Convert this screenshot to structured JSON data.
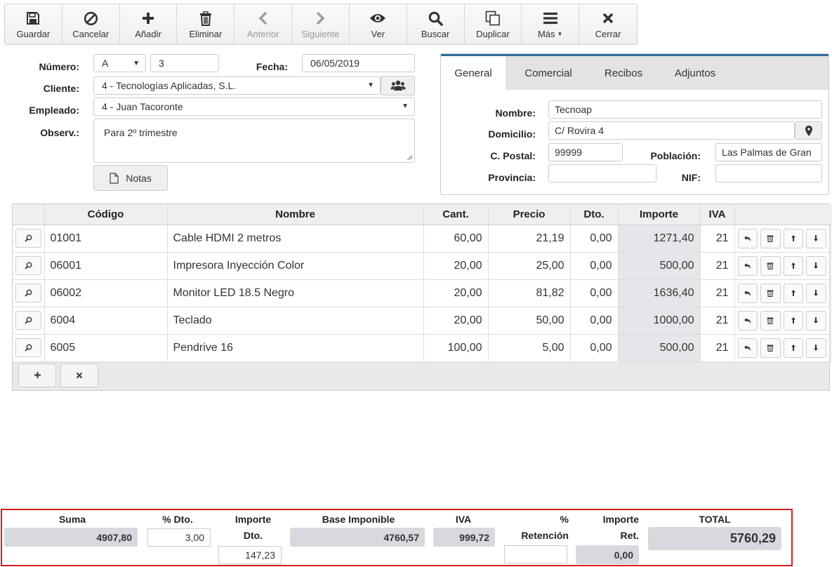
{
  "toolbar": {
    "buttons": [
      {
        "label": "Guardar",
        "icon": "save-icon",
        "disabled": false
      },
      {
        "label": "Cancelar",
        "icon": "ban-icon",
        "disabled": false
      },
      {
        "label": "Añadir",
        "icon": "plus-icon",
        "disabled": false
      },
      {
        "label": "Eliminar",
        "icon": "trash-icon",
        "disabled": false
      },
      {
        "label": "Anterior",
        "icon": "chevron-left-icon",
        "disabled": true
      },
      {
        "label": "Siguiente",
        "icon": "chevron-right-icon",
        "disabled": true
      },
      {
        "label": "Ver",
        "icon": "eye-icon",
        "disabled": false
      },
      {
        "label": "Buscar",
        "icon": "search-icon",
        "disabled": false
      },
      {
        "label": "Duplicar",
        "icon": "copy-icon",
        "disabled": false
      },
      {
        "label": "Más",
        "icon": "menu-icon",
        "disabled": false
      },
      {
        "label": "Cerrar",
        "icon": "close-icon",
        "disabled": false
      }
    ]
  },
  "form": {
    "numero_label": "Número:",
    "serie": "A",
    "numero": "3",
    "fecha_label": "Fecha:",
    "fecha": "06/05/2019",
    "cliente_label": "Cliente:",
    "cliente": "4 - Tecnologías Aplicadas, S.L.",
    "empleado_label": "Empleado:",
    "empleado": "4 - Juan Tacoronte",
    "observ_label": "Observ.:",
    "observ": "Para 2º trimestre",
    "notas_label": "Notas"
  },
  "tabs": [
    "General",
    "Comercial",
    "Recibos",
    "Adjuntos"
  ],
  "general": {
    "nombre_label": "Nombre:",
    "nombre": "Tecnoap",
    "domicilio_label": "Domicilio:",
    "domicilio": "C/ Rovira 4",
    "cpostal_label": "C. Postal:",
    "cpostal": "99999",
    "poblacion_label": "Población:",
    "poblacion": "Las Palmas de Gran",
    "provincia_label": "Provincia:",
    "provincia": "",
    "nif_label": "NIF:",
    "nif": ""
  },
  "lines": {
    "headers": [
      "",
      "Código",
      "Nombre",
      "Cant.",
      "Precio",
      "Dto.",
      "Importe",
      "IVA",
      ""
    ],
    "rows": [
      {
        "codigo": "01001",
        "nombre": "Cable HDMI 2 metros",
        "cant": "60,00",
        "precio": "21,19",
        "dto": "0,00",
        "importe": "1271,40",
        "iva": "21"
      },
      {
        "codigo": "06001",
        "nombre": "Impresora Inyección Color",
        "cant": "20,00",
        "precio": "25,00",
        "dto": "0,00",
        "importe": "500,00",
        "iva": "21"
      },
      {
        "codigo": "06002",
        "nombre": "Monitor LED 18.5 Negro",
        "cant": "20,00",
        "precio": "81,82",
        "dto": "0,00",
        "importe": "1636,40",
        "iva": "21"
      },
      {
        "codigo": "6004",
        "nombre": "Teclado",
        "cant": "20,00",
        "precio": "50,00",
        "dto": "0,00",
        "importe": "1000,00",
        "iva": "21"
      },
      {
        "codigo": "6005",
        "nombre": "Pendrive 16",
        "cant": "100,00",
        "precio": "5,00",
        "dto": "0,00",
        "importe": "500,00",
        "iva": "21"
      }
    ]
  },
  "totals": {
    "suma_label": "Suma",
    "suma": "4907,80",
    "pdto_label": "% Dto.",
    "pdto": "3,00",
    "importe_dto_label1": "Importe",
    "importe_dto_label2": "Dto.",
    "importe_dto": "147,23",
    "base_label": "Base Imponible",
    "base": "4760,57",
    "iva_label": "IVA",
    "iva": "999,72",
    "pret_label1": "%",
    "pret_label2": "Retención",
    "pret": "",
    "importe_ret_label1": "Importe",
    "importe_ret_label2": "Ret.",
    "importe_ret": "0,00",
    "total_label": "TOTAL",
    "total": "5760,29"
  }
}
